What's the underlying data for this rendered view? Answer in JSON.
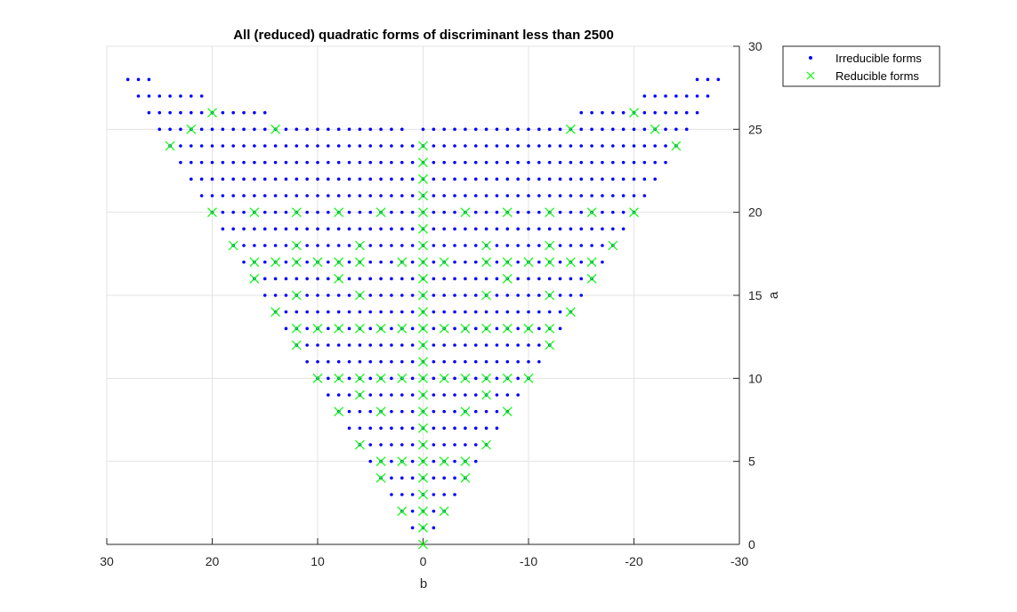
{
  "chart_data": {
    "type": "scatter",
    "title": "All (reduced) quadratic forms of discriminant less than 2500",
    "xlabel": "b",
    "ylabel": "a",
    "xlim": [
      30,
      -30
    ],
    "x_direction": "reversed",
    "ylim": [
      0,
      30
    ],
    "y_axis_location": "right",
    "grid": true,
    "legend_placement": "top-right-outside",
    "x_ticks": [
      30,
      20,
      10,
      0,
      -10,
      -20,
      -30
    ],
    "x_tick_labels": [
      "30",
      "20",
      "10",
      "0",
      "-10",
      "-20",
      "-30"
    ],
    "y_ticks": [
      0,
      5,
      10,
      15,
      20,
      25,
      30
    ],
    "y_tick_labels": [
      "0",
      "5",
      "10",
      "15",
      "20",
      "25",
      "30"
    ],
    "series": [
      {
        "name": "Irreducible forms",
        "marker": "dot",
        "color": "#0000ff",
        "rows": [
          {
            "a": 1,
            "b_min": -1,
            "b_max": 1
          },
          {
            "a": 2,
            "b_min": -2,
            "b_max": 2
          },
          {
            "a": 3,
            "b_min": -3,
            "b_max": 3
          },
          {
            "a": 4,
            "b_min": -4,
            "b_max": 4
          },
          {
            "a": 5,
            "b_min": -5,
            "b_max": 5
          },
          {
            "a": 6,
            "b_min": -6,
            "b_max": 6
          },
          {
            "a": 7,
            "b_min": -7,
            "b_max": 7
          },
          {
            "a": 8,
            "b_min": -8,
            "b_max": 8
          },
          {
            "a": 9,
            "b_min": -9,
            "b_max": 9
          },
          {
            "a": 10,
            "b_min": -10,
            "b_max": 10
          },
          {
            "a": 11,
            "b_min": -11,
            "b_max": 11
          },
          {
            "a": 12,
            "b_min": -12,
            "b_max": 12
          },
          {
            "a": 13,
            "b_min": -13,
            "b_max": 13
          },
          {
            "a": 14,
            "b_min": -14,
            "b_max": 14
          },
          {
            "a": 15,
            "b_min": -15,
            "b_max": 15
          },
          {
            "a": 16,
            "b_min": -16,
            "b_max": 16
          },
          {
            "a": 17,
            "b_min": -17,
            "b_max": 17
          },
          {
            "a": 18,
            "b_min": -18,
            "b_max": 18
          },
          {
            "a": 19,
            "b_min": -19,
            "b_max": 19
          },
          {
            "a": 20,
            "b_min": -20,
            "b_max": 20
          },
          {
            "a": 21,
            "b_min": -21,
            "b_max": 21
          },
          {
            "a": 22,
            "b_min": -22,
            "b_max": 22
          },
          {
            "a": 23,
            "b_min": -23,
            "b_max": 23
          },
          {
            "a": 24,
            "b_min": -24,
            "b_max": 24
          },
          {
            "a": 25,
            "b_min": -25,
            "b_max": 25,
            "b_exclude_min": 1,
            "b_exclude_max": 1
          },
          {
            "a": 26,
            "b_min": -26,
            "b_max": -15
          },
          {
            "a": 26,
            "b_min": 15,
            "b_max": 26
          },
          {
            "a": 27,
            "b_min": -27,
            "b_max": -21
          },
          {
            "a": 27,
            "b_min": 21,
            "b_max": 27
          },
          {
            "a": 28,
            "b_min": -28,
            "b_max": -26
          },
          {
            "a": 28,
            "b_min": 26,
            "b_max": 28
          }
        ]
      },
      {
        "name": "Reducible forms",
        "marker": "x",
        "color": "#00ff00",
        "points": [
          [
            0,
            0
          ],
          [
            0,
            1
          ],
          [
            2,
            2
          ],
          [
            0,
            2
          ],
          [
            -2,
            2
          ],
          [
            0,
            3
          ],
          [
            4,
            4
          ],
          [
            0,
            4
          ],
          [
            -4,
            4
          ],
          [
            4,
            5
          ],
          [
            2,
            5
          ],
          [
            0,
            5
          ],
          [
            -2,
            5
          ],
          [
            -4,
            5
          ],
          [
            6,
            6
          ],
          [
            0,
            6
          ],
          [
            -6,
            6
          ],
          [
            0,
            7
          ],
          [
            8,
            8
          ],
          [
            4,
            8
          ],
          [
            0,
            8
          ],
          [
            -4,
            8
          ],
          [
            -8,
            8
          ],
          [
            0,
            9
          ],
          [
            6,
            9
          ],
          [
            -6,
            9
          ],
          [
            10,
            10
          ],
          [
            8,
            10
          ],
          [
            6,
            10
          ],
          [
            4,
            10
          ],
          [
            2,
            10
          ],
          [
            0,
            10
          ],
          [
            -2,
            10
          ],
          [
            -4,
            10
          ],
          [
            -6,
            10
          ],
          [
            -8,
            10
          ],
          [
            -10,
            10
          ],
          [
            0,
            11
          ],
          [
            12,
            12
          ],
          [
            0,
            12
          ],
          [
            -12,
            12
          ],
          [
            12,
            13
          ],
          [
            10,
            13
          ],
          [
            8,
            13
          ],
          [
            6,
            13
          ],
          [
            4,
            13
          ],
          [
            2,
            13
          ],
          [
            0,
            13
          ],
          [
            -2,
            13
          ],
          [
            -4,
            13
          ],
          [
            -6,
            13
          ],
          [
            -8,
            13
          ],
          [
            -10,
            13
          ],
          [
            -12,
            13
          ],
          [
            14,
            14
          ],
          [
            0,
            14
          ],
          [
            -14,
            14
          ],
          [
            12,
            15
          ],
          [
            6,
            15
          ],
          [
            0,
            15
          ],
          [
            -6,
            15
          ],
          [
            -12,
            15
          ],
          [
            16,
            16
          ],
          [
            8,
            16
          ],
          [
            0,
            16
          ],
          [
            -8,
            16
          ],
          [
            -16,
            16
          ],
          [
            16,
            17
          ],
          [
            14,
            17
          ],
          [
            12,
            17
          ],
          [
            10,
            17
          ],
          [
            8,
            17
          ],
          [
            6,
            17
          ],
          [
            2,
            17
          ],
          [
            0,
            17
          ],
          [
            -2,
            17
          ],
          [
            -6,
            17
          ],
          [
            -8,
            17
          ],
          [
            -10,
            17
          ],
          [
            -12,
            17
          ],
          [
            -14,
            17
          ],
          [
            -16,
            17
          ],
          [
            18,
            18
          ],
          [
            12,
            18
          ],
          [
            6,
            18
          ],
          [
            0,
            18
          ],
          [
            -6,
            18
          ],
          [
            -12,
            18
          ],
          [
            -18,
            18
          ],
          [
            0,
            19
          ],
          [
            20,
            20
          ],
          [
            16,
            20
          ],
          [
            12,
            20
          ],
          [
            8,
            20
          ],
          [
            4,
            20
          ],
          [
            0,
            20
          ],
          [
            -4,
            20
          ],
          [
            -8,
            20
          ],
          [
            -12,
            20
          ],
          [
            -16,
            20
          ],
          [
            -20,
            20
          ],
          [
            0,
            21
          ],
          [
            0,
            22
          ],
          [
            0,
            23
          ],
          [
            24,
            24
          ],
          [
            0,
            24
          ],
          [
            -24,
            24
          ],
          [
            22,
            25
          ],
          [
            14,
            25
          ],
          [
            -14,
            25
          ],
          [
            -22,
            25
          ],
          [
            20,
            26
          ],
          [
            -20,
            26
          ]
        ]
      }
    ]
  }
}
